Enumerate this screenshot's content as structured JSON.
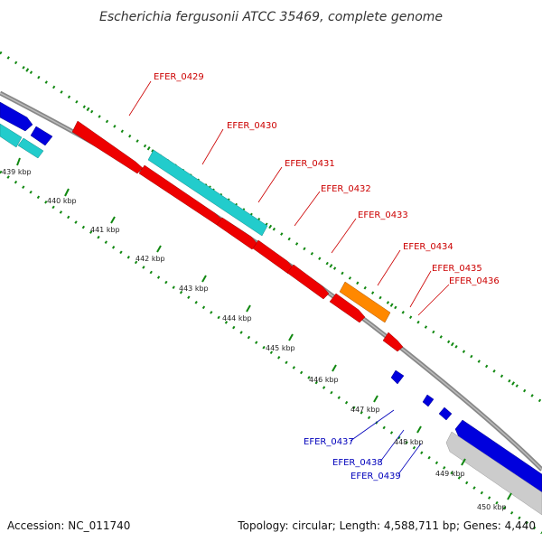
{
  "title": "Escherichia fergusonii ATCC 35469, complete genome",
  "footer": {
    "accession": "Accession: NC_011740",
    "summary": "Topology: circular; Length: 4,588,711 bp; Genes: 4,440"
  },
  "colors": {
    "forward_gene": "#ee0000",
    "reverse_gene": "#0000dd",
    "rna": "#22cccc",
    "pseudo": "#ff8800",
    "other": "#cccccc",
    "forward_label": "#cc0000",
    "reverse_label": "#0000bb",
    "tick": "#118811",
    "backbone": "#888888"
  },
  "kbp_labels": [
    "439 kbp",
    "440 kbp",
    "441 kbp",
    "442 kbp",
    "443 kbp",
    "444 kbp",
    "445 kbp",
    "446 kbp",
    "447 kbp",
    "448 kbp",
    "449 kbp",
    "450 kbp"
  ],
  "gene_labels": {
    "forward": [
      "EFER_0429",
      "EFER_0430",
      "EFER_0431",
      "EFER_0432",
      "EFER_0433",
      "EFER_0434",
      "EFER_0435",
      "EFER_0436"
    ],
    "reverse": [
      "EFER_0437",
      "EFER_0438",
      "EFER_0439"
    ]
  }
}
